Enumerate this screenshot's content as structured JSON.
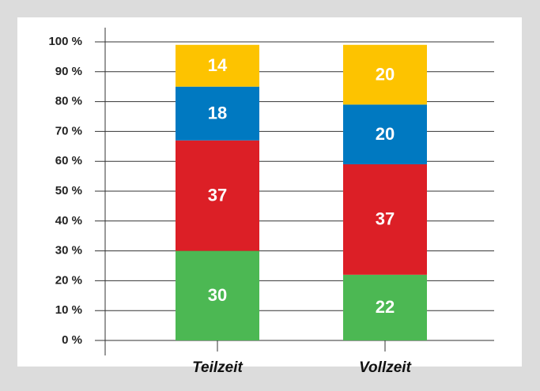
{
  "chart_data": {
    "type": "stacked_bar",
    "categories": [
      "Teilzeit",
      "Vollzeit"
    ],
    "series": [
      {
        "color": "#4cb853",
        "values": [
          30,
          22
        ]
      },
      {
        "color": "#dc1f26",
        "values": [
          37,
          37
        ]
      },
      {
        "color": "#0079c1",
        "values": [
          18,
          20
        ]
      },
      {
        "color": "#fdc300",
        "values": [
          14,
          20
        ]
      }
    ],
    "ylim": [
      0,
      100
    ],
    "yticks": [
      {
        "value": 0,
        "label": "0 %"
      },
      {
        "value": 10,
        "label": "10 %"
      },
      {
        "value": 20,
        "label": "20 %"
      },
      {
        "value": 30,
        "label": "30 %"
      },
      {
        "value": 40,
        "label": "40 %"
      },
      {
        "value": 50,
        "label": "50 %"
      },
      {
        "value": 60,
        "label": "60 %"
      },
      {
        "value": 70,
        "label": "70 %"
      },
      {
        "value": 80,
        "label": "80 %"
      },
      {
        "value": 90,
        "label": "90 %"
      },
      {
        "value": 100,
        "label": "100 %"
      }
    ],
    "grid": true
  }
}
